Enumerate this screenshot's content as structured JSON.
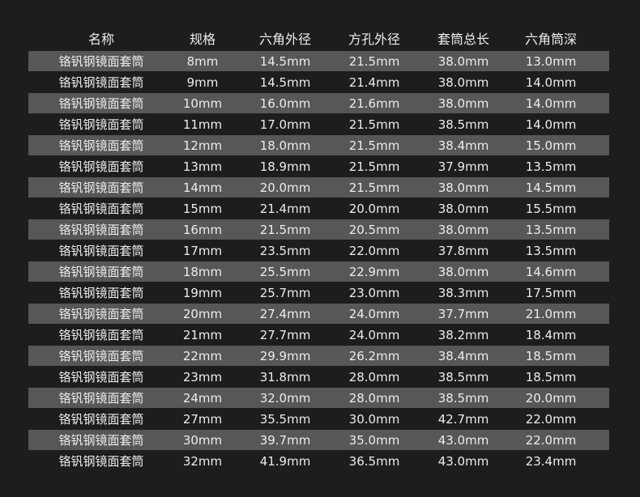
{
  "table": {
    "columns": [
      "名称",
      "规格",
      "六角外径",
      "方孔外径",
      "套筒总长",
      "六角筒深"
    ],
    "rows": [
      [
        "铬钒钢镜面套筒",
        "8mm",
        "14.5mm",
        "21.5mm",
        "38.0mm",
        "13.0mm"
      ],
      [
        "铬钒钢镜面套筒",
        "9mm",
        "14.5mm",
        "21.4mm",
        "38.0mm",
        "14.0mm"
      ],
      [
        "铬钒钢镜面套筒",
        "10mm",
        "16.0mm",
        "21.6mm",
        "38.0mm",
        "14.0mm"
      ],
      [
        "铬钒钢镜面套筒",
        "11mm",
        "17.0mm",
        "21.5mm",
        "38.5mm",
        "14.0mm"
      ],
      [
        "铬钒钢镜面套筒",
        "12mm",
        "18.0mm",
        "21.5mm",
        "38.4mm",
        "15.0mm"
      ],
      [
        "铬钒钢镜面套筒",
        "13mm",
        "18.9mm",
        "21.5mm",
        "37.9mm",
        "13.5mm"
      ],
      [
        "铬钒钢镜面套筒",
        "14mm",
        "20.0mm",
        "21.5mm",
        "38.0mm",
        "14.5mm"
      ],
      [
        "铬钒钢镜面套筒",
        "15mm",
        "21.4mm",
        "20.0mm",
        "38.0mm",
        "15.5mm"
      ],
      [
        "铬钒钢镜面套筒",
        "16mm",
        "21.5mm",
        "20.5mm",
        "38.0mm",
        "13.5mm"
      ],
      [
        "铬钒钢镜面套筒",
        "17mm",
        "23.5mm",
        "22.0mm",
        "37.8mm",
        "13.5mm"
      ],
      [
        "铬钒钢镜面套筒",
        "18mm",
        "25.5mm",
        "22.9mm",
        "38.0mm",
        "14.6mm"
      ],
      [
        "铬钒钢镜面套筒",
        "19mm",
        "25.7mm",
        "23.0mm",
        "38.3mm",
        "17.5mm"
      ],
      [
        "铬钒钢镜面套筒",
        "20mm",
        "27.4mm",
        "24.0mm",
        "37.7mm",
        "21.0mm"
      ],
      [
        "铬钒钢镜面套筒",
        "21mm",
        "27.7mm",
        "24.0mm",
        "38.2mm",
        "18.4mm"
      ],
      [
        "铬钒钢镜面套筒",
        "22mm",
        "29.9mm",
        "26.2mm",
        "38.4mm",
        "18.5mm"
      ],
      [
        "铬钒钢镜面套筒",
        "23mm",
        "31.8mm",
        "28.0mm",
        "38.5mm",
        "18.5mm"
      ],
      [
        "铬钒钢镜面套筒",
        "24mm",
        "32.0mm",
        "28.0mm",
        "38.5mm",
        "20.0mm"
      ],
      [
        "铬钒钢镜面套筒",
        "27mm",
        "35.5mm",
        "30.0mm",
        "42.7mm",
        "22.0mm"
      ],
      [
        "铬钒钢镜面套筒",
        "30mm",
        "39.7mm",
        "35.0mm",
        "43.0mm",
        "22.0mm"
      ],
      [
        "铬钒钢镜面套筒",
        "32mm",
        "41.9mm",
        "36.5mm",
        "43.0mm",
        "23.4mm"
      ]
    ]
  }
}
